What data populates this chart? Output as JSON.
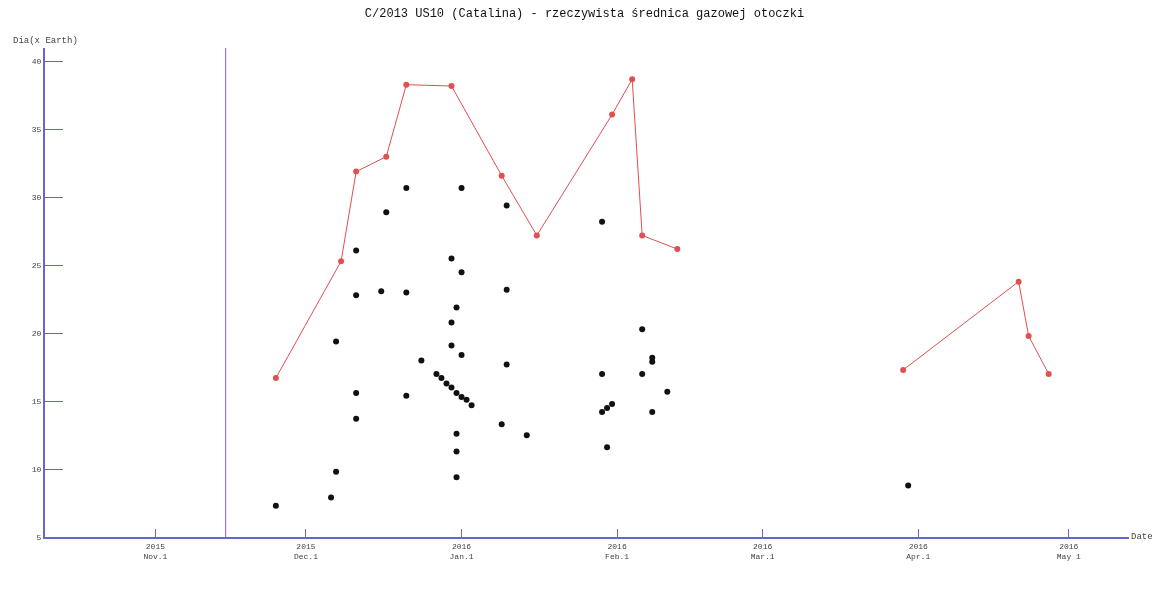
{
  "chart_data": {
    "type": "scatter",
    "title": "C/2013 US10 (Catalina) - rzeczywista średnica gazowej otoczki",
    "xlabel": "Date",
    "ylabel": "Dia(x Earth)",
    "xlim": [
      "2015-10-10",
      "2016-05-13"
    ],
    "ylim": [
      5,
      41
    ],
    "xticks": [
      {
        "value": "2015-11-01",
        "label": "2015\nNov.1"
      },
      {
        "value": "2015-12-01",
        "label": "2015\nDec.1"
      },
      {
        "value": "2016-01-01",
        "label": "2016\nJan.1"
      },
      {
        "value": "2016-02-01",
        "label": "2016\nFeb.1"
      },
      {
        "value": "2016-03-01",
        "label": "2016\nMar.1"
      },
      {
        "value": "2016-04-01",
        "label": "2016\nApr.1"
      },
      {
        "value": "2016-05-01",
        "label": "2016\nMay 1"
      }
    ],
    "yticks": [
      5,
      10,
      15,
      20,
      25,
      30,
      35,
      40
    ],
    "marker": "circle",
    "ref_lines": [
      {
        "axis": "x",
        "value": "2015-11-15",
        "label": null,
        "color": "#9955dd"
      }
    ],
    "series": [
      {
        "type": "line",
        "color": "#e05050",
        "x": [
          "2015-11-25",
          "2015-12-08",
          "2015-12-11",
          "2015-12-17",
          "2015-12-21",
          "2015-12-30",
          "2016-01-09",
          "2016-01-16",
          "2016-01-31",
          "2016-02-04",
          "2016-02-06",
          "2016-02-13",
          "2016-03-01",
          "2016-03-29",
          "2016-04-21",
          "2016-04-23",
          "2016-04-27"
        ],
        "values": [
          16.7,
          25.3,
          31.9,
          33.0,
          38.3,
          38.2,
          31.6,
          27.2,
          36.1,
          38.7,
          27.2,
          26.2,
          null,
          17.3,
          23.8,
          19.8,
          17.0
        ]
      },
      {
        "color": "#111111",
        "x": [
          "2015-11-25",
          "2015-12-06",
          "2015-12-07",
          "2015-12-07",
          "2015-12-11",
          "2015-12-11",
          "2015-12-11",
          "2015-12-11",
          "2015-12-16",
          "2015-12-17",
          "2015-12-21",
          "2015-12-21",
          "2015-12-21",
          "2015-12-24",
          "2015-12-27",
          "2015-12-28",
          "2015-12-29",
          "2015-12-30",
          "2015-12-30",
          "2015-12-30",
          "2015-12-30",
          "2015-12-31",
          "2015-12-31",
          "2015-12-31",
          "2015-12-31",
          "2015-12-31",
          "2016-01-01",
          "2016-01-01",
          "2016-01-01",
          "2016-01-01",
          "2016-01-02",
          "2016-01-03",
          "2016-01-09",
          "2016-01-10",
          "2016-01-10",
          "2016-01-10",
          "2016-01-14",
          "2016-01-29",
          "2016-01-29",
          "2016-01-29",
          "2016-01-30",
          "2016-01-30",
          "2016-01-31",
          "2016-02-06",
          "2016-02-06",
          "2016-02-08",
          "2016-02-08",
          "2016-02-08",
          "2016-02-11",
          "2016-03-30"
        ],
        "values": [
          7.3,
          7.9,
          9.8,
          19.4,
          26.1,
          22.8,
          15.6,
          13.7,
          23.1,
          28.9,
          30.7,
          23.0,
          15.4,
          18.0,
          17.0,
          16.7,
          16.3,
          25.5,
          20.8,
          19.1,
          16.0,
          21.9,
          15.6,
          12.6,
          11.3,
          9.4,
          30.7,
          24.5,
          18.4,
          15.3,
          15.1,
          14.7,
          13.3,
          29.4,
          23.2,
          17.7,
          12.5,
          28.2,
          17.0,
          14.2,
          14.5,
          11.6,
          14.8,
          20.3,
          17.0,
          18.2,
          17.9,
          14.2,
          15.7,
          8.8
        ]
      }
    ]
  }
}
